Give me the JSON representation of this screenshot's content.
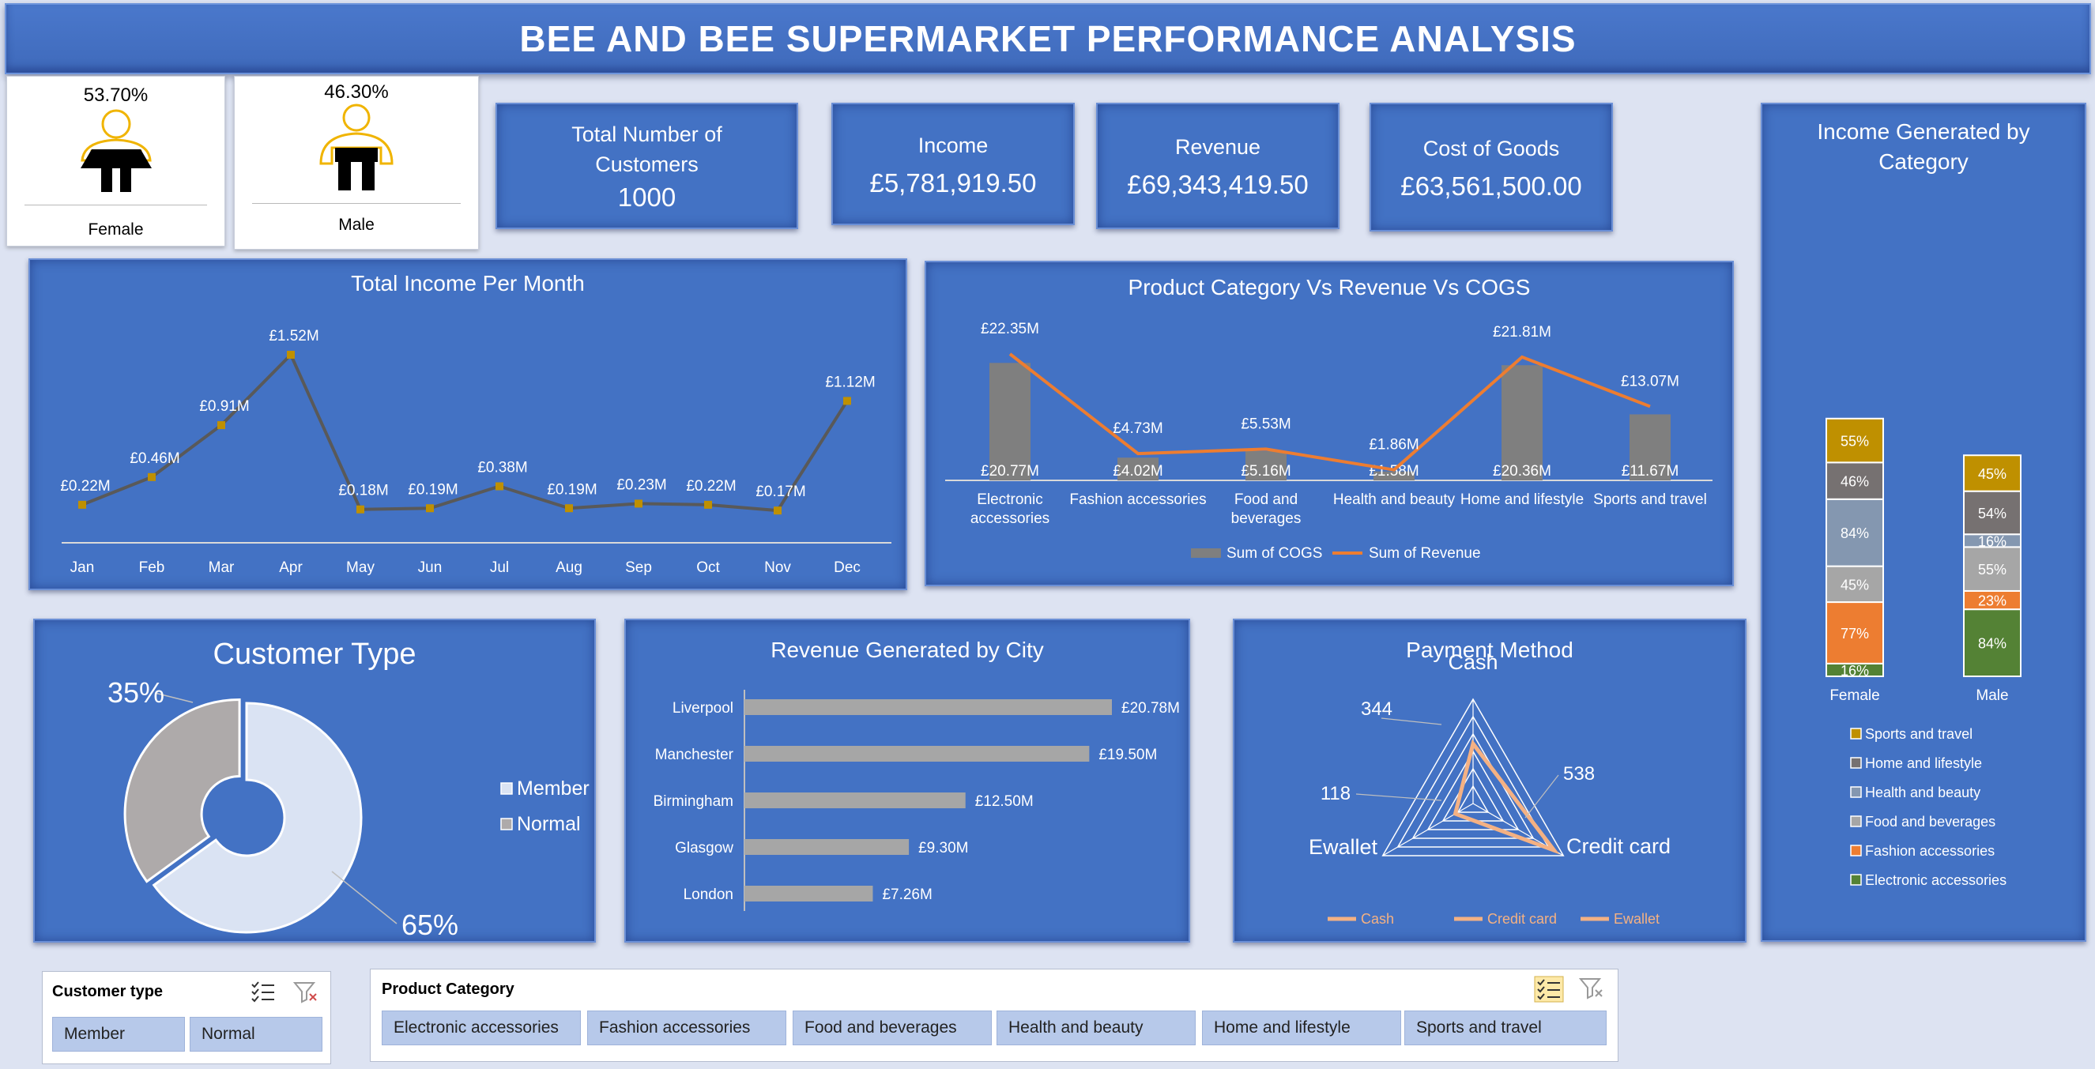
{
  "header": {
    "title": "BEE AND BEE SUPERMARKET PERFORMANCE ANALYSIS"
  },
  "gender": {
    "female": {
      "percent": "53.70%",
      "label": "Female"
    },
    "male": {
      "percent": "46.30%",
      "label": "Male"
    }
  },
  "kpis": {
    "customers": {
      "title": "Total Number of Customers",
      "value": "1000"
    },
    "income": {
      "title": "Income",
      "value": "£5,781,919.50"
    },
    "revenue": {
      "title": "Revenue",
      "value": "£69,343,419.50"
    },
    "cogs": {
      "title": "Cost of Goods",
      "value": "£63,561,500.00"
    }
  },
  "colors": {
    "panel": "#4372c4",
    "accent_line": "#595959",
    "marker": "#bf9000",
    "revenue_line": "#ed7d31",
    "cogs_bar": "#7f7f7f",
    "city_bar": "#a6a6a6"
  },
  "chart_data": [
    {
      "type": "line",
      "title": "Total Income Per Month",
      "categories": [
        "Jan",
        "Feb",
        "Mar",
        "Apr",
        "May",
        "Jun",
        "Jul",
        "Aug",
        "Sep",
        "Oct",
        "Nov",
        "Dec"
      ],
      "values": [
        0.22,
        0.46,
        0.91,
        1.52,
        0.18,
        0.19,
        0.38,
        0.19,
        0.23,
        0.22,
        0.17,
        1.12
      ],
      "labels": [
        "£0.22M",
        "£0.46M",
        "£0.91M",
        "£1.52M",
        "£0.18M",
        "£0.19M",
        "£0.38M",
        "£0.19M",
        "£0.23M",
        "£0.22M",
        "£0.17M",
        "£1.12M"
      ]
    },
    {
      "type": "bar",
      "title": "Product Category Vs Revenue Vs COGS",
      "categories": [
        "Electronic accessories",
        "Fashion accessories",
        "Food and beverages",
        "Health and beauty",
        "Home and lifestyle",
        "Sports and travel"
      ],
      "series": [
        {
          "name": "Sum of COGS",
          "values": [
            20.77,
            4.02,
            5.16,
            1.58,
            20.36,
            11.67
          ],
          "labels": [
            "£20.77M",
            "£4.02M",
            "£5.16M",
            "£1.58M",
            "£20.36M",
            "£11.67M"
          ]
        },
        {
          "name": "Sum of Revenue",
          "values": [
            22.35,
            4.73,
            5.53,
            1.86,
            21.81,
            13.07
          ],
          "labels": [
            "£22.35M",
            "£4.73M",
            "£5.53M",
            "£1.86M",
            "£21.81M",
            "£13.07M"
          ]
        }
      ]
    },
    {
      "type": "pie",
      "title": "Customer Type",
      "categories": [
        "Member",
        "Normal"
      ],
      "values": [
        65,
        35
      ],
      "labels": [
        "65%",
        "35%"
      ]
    },
    {
      "type": "bar",
      "title": "Revenue Generated by City",
      "categories": [
        "Liverpool",
        "Manchester",
        "Birmingham",
        "Glasgow",
        "London"
      ],
      "values": [
        20.78,
        19.5,
        12.5,
        9.3,
        7.26
      ],
      "labels": [
        "£20.78M",
        "£19.50M",
        "£12.50M",
        "£9.30M",
        "£7.26M"
      ]
    },
    {
      "type": "radar",
      "title": "Payment Method",
      "categories": [
        "Cash",
        "Credit card",
        "Ewallet"
      ],
      "values": [
        344,
        538,
        118
      ],
      "legend": [
        "Cash",
        "Credit card",
        "Ewallet"
      ]
    },
    {
      "type": "bar",
      "title": "Income Generated by Category",
      "categories": [
        "Female",
        "Male"
      ],
      "series": [
        {
          "name": "Electronic accessories",
          "values": [
            16,
            84
          ],
          "labels": [
            "16%",
            "84%"
          ],
          "color": "#548235"
        },
        {
          "name": "Fashion accessories",
          "values": [
            77,
            23
          ],
          "labels": [
            "77%",
            "23%"
          ],
          "color": "#ed7d31"
        },
        {
          "name": "Food and beverages",
          "values": [
            45,
            55
          ],
          "labels": [
            "45%",
            "55%"
          ],
          "color": "#a6a6a6"
        },
        {
          "name": "Health and beauty",
          "values": [
            84,
            16
          ],
          "labels": [
            "84%",
            "16%"
          ],
          "color": "#8497b0"
        },
        {
          "name": "Home and lifestyle",
          "values": [
            46,
            54
          ],
          "labels": [
            "46%",
            "54%"
          ],
          "color": "#767171"
        },
        {
          "name": "Sports and travel",
          "values": [
            55,
            45
          ],
          "labels": [
            "55%",
            "45%"
          ],
          "color": "#bf9000"
        }
      ]
    }
  ],
  "slicers": {
    "customer_type": {
      "title": "Customer type",
      "items": [
        "Member",
        "Normal"
      ]
    },
    "product_category": {
      "title": "Product Category",
      "items": [
        "Electronic accessories",
        "Fashion accessories",
        "Food and beverages",
        "Health and beauty",
        "Home and lifestyle",
        "Sports and travel"
      ]
    }
  }
}
